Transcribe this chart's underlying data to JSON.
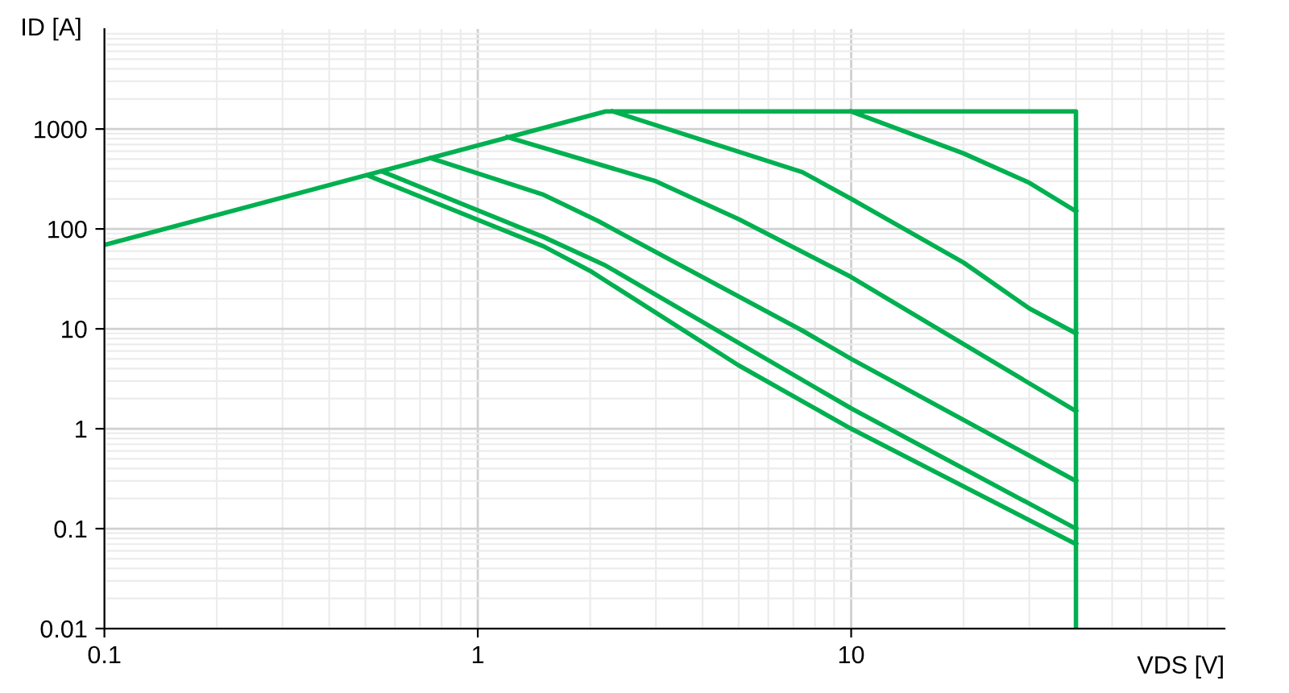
{
  "chart_data": {
    "type": "line",
    "xlabel": "VDS [V]",
    "ylabel": "ID [A]",
    "log": "xy",
    "grid": true,
    "marker": "none",
    "line_style": "solid",
    "xlim": [
      0.1,
      100
    ],
    "xticks": [
      0.1,
      1,
      10
    ],
    "ylim": [
      0.01,
      10000
    ],
    "yticks": [
      0.01,
      0.1,
      1,
      10,
      100,
      1000
    ],
    "series": [
      {
        "color": "#00b050",
        "x": [
          0.1,
          2.2,
          40,
          40
        ],
        "values": [
          69,
          1500,
          1500,
          0.01
        ]
      },
      {
        "color": "#00b050",
        "x": [
          10,
          20,
          30,
          40
        ],
        "values": [
          1500,
          570,
          290,
          150
        ]
      },
      {
        "color": "#00b050",
        "x": [
          2.3,
          7.4,
          10,
          20,
          30,
          40
        ],
        "values": [
          1500,
          370,
          200,
          46,
          16,
          9
        ]
      },
      {
        "color": "#00b050",
        "x": [
          1.2,
          3,
          5,
          10,
          40
        ],
        "values": [
          830,
          300,
          125,
          33,
          1.5
        ]
      },
      {
        "color": "#00b050",
        "x": [
          0.75,
          1.5,
          2.1,
          7.4,
          10,
          40
        ],
        "values": [
          510,
          220,
          120,
          9.6,
          5,
          0.3
        ]
      },
      {
        "color": "#00b050",
        "x": [
          0.56,
          1.5,
          2.2,
          10,
          40
        ],
        "values": [
          370,
          83,
          43,
          1.6,
          0.1
        ]
      },
      {
        "color": "#00b050",
        "x": [
          0.51,
          1.5,
          2,
          5,
          10,
          40
        ],
        "values": [
          340,
          67,
          38,
          4.3,
          1,
          0.07
        ]
      }
    ]
  }
}
